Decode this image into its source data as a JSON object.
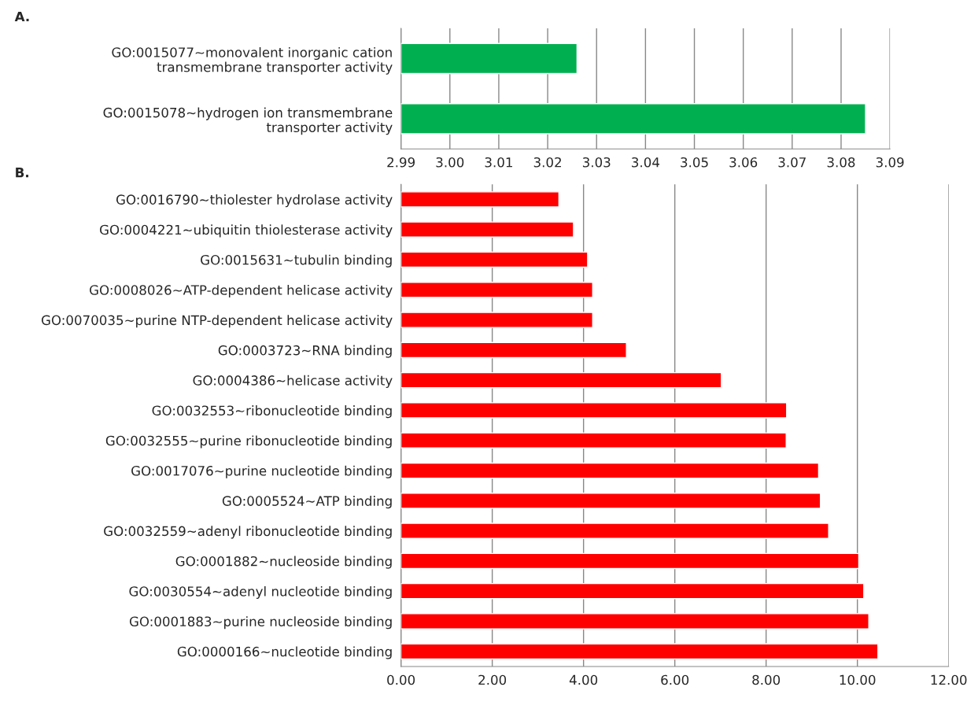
{
  "chart_data": [
    {
      "type": "bar",
      "orientation": "horizontal",
      "title": "A.",
      "categories": [
        "GO:0015077~monovalent inorganic cation transmembrane transporter activity",
        "GO:0015078~hydrogen ion transmembrane transporter activity"
      ],
      "values": [
        3.026,
        3.085
      ],
      "color": "#00b050",
      "xlim": [
        2.99,
        3.09
      ],
      "xticks": [
        {
          "value": 2.99,
          "label": "2.99"
        },
        {
          "value": 3.0,
          "label": "3.00"
        },
        {
          "value": 3.01,
          "label": "3.01"
        },
        {
          "value": 3.02,
          "label": "3.02"
        },
        {
          "value": 3.03,
          "label": "3.03"
        },
        {
          "value": 3.04,
          "label": "3.04"
        },
        {
          "value": 3.05,
          "label": "3.05"
        },
        {
          "value": 3.06,
          "label": "3.06"
        },
        {
          "value": 3.07,
          "label": "3.07"
        },
        {
          "value": 3.08,
          "label": "3.08"
        },
        {
          "value": 3.09,
          "label": "3.09"
        }
      ],
      "grid": "x"
    },
    {
      "type": "bar",
      "orientation": "horizontal",
      "title": "B.",
      "categories": [
        "GO:0016790~thiolester hydrolase activity",
        "GO:0004221~ubiquitin thiolesterase activity",
        "GO:0015631~tubulin binding",
        "GO:0008026~ATP-dependent helicase activity",
        "GO:0070035~purine NTP-dependent helicase activity",
        "GO:0003723~RNA binding",
        "GO:0004386~helicase activity",
        "GO:0032553~ribonucleotide binding",
        "GO:0032555~purine ribonucleotide binding",
        "GO:0017076~purine nucleotide binding",
        "GO:0005524~ATP binding",
        "GO:0032559~adenyl ribonucleotide binding",
        "GO:0001882~nucleoside binding",
        "GO:0030554~adenyl nucleotide binding",
        "GO:0001883~purine nucleoside binding",
        "GO:0000166~nucleotide binding"
      ],
      "values": [
        3.46,
        3.78,
        4.09,
        4.2,
        4.2,
        4.94,
        7.02,
        8.45,
        8.44,
        9.15,
        9.19,
        9.37,
        10.03,
        10.14,
        10.25,
        10.45
      ],
      "color": "#ff0000",
      "xlim": [
        0,
        12
      ],
      "xticks": [
        {
          "value": 0,
          "label": "0.00"
        },
        {
          "value": 2,
          "label": "2.00"
        },
        {
          "value": 4,
          "label": "4.00"
        },
        {
          "value": 6,
          "label": "6.00"
        },
        {
          "value": 8,
          "label": "8.00"
        },
        {
          "value": 10,
          "label": "10.00"
        },
        {
          "value": 12,
          "label": "12.00"
        }
      ],
      "grid": "x"
    }
  ]
}
